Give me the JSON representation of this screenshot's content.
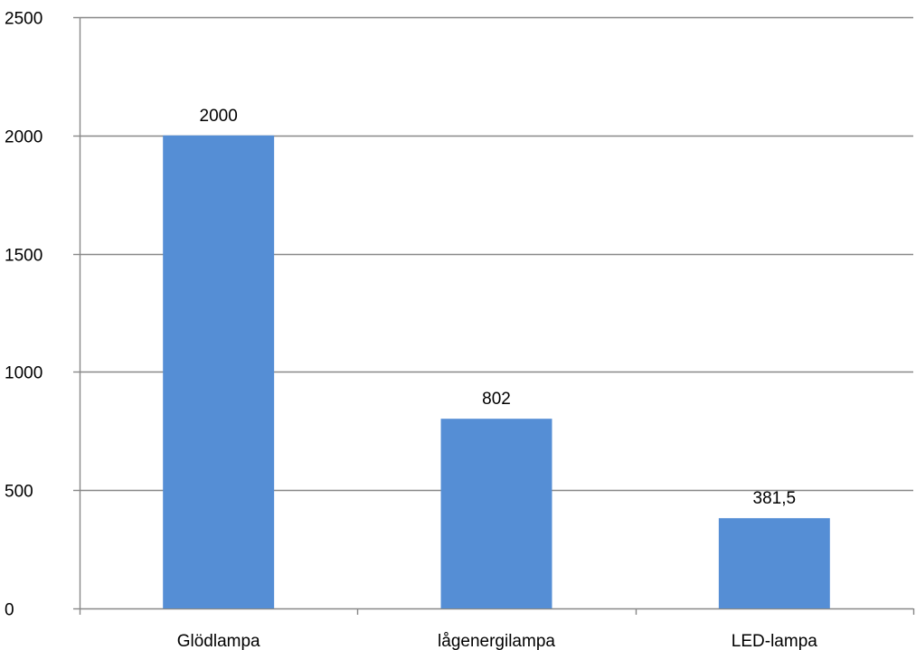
{
  "chart_data": {
    "type": "bar",
    "title": "",
    "xlabel": "",
    "ylabel": "",
    "categories": [
      "Glödlampa",
      "lågenergilampa",
      "LED-lampa"
    ],
    "values": [
      2000,
      802,
      381.5
    ],
    "data_labels": [
      "2000",
      "802",
      "381,5"
    ],
    "ylim": [
      0,
      2500
    ],
    "yticks": [
      0,
      500,
      1000,
      1500,
      2000,
      2500
    ],
    "ytick_labels": [
      "0",
      "500",
      "1000",
      "1500",
      "2000",
      "2500"
    ],
    "grid": true,
    "legend": "none",
    "colors": {
      "bar": "#558ED5",
      "grid": "#888888",
      "axis": "#888888"
    }
  }
}
